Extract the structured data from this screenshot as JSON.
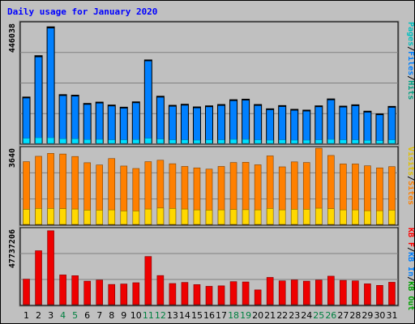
{
  "title": "Daily usage for January 2020",
  "chart_data": {
    "type": "bar",
    "categories": [
      "1",
      "2",
      "3",
      "4",
      "5",
      "6",
      "7",
      "8",
      "9",
      "10",
      "11",
      "12",
      "13",
      "14",
      "15",
      "16",
      "17",
      "18",
      "19",
      "20",
      "21",
      "22",
      "23",
      "24",
      "25",
      "26",
      "27",
      "28",
      "29",
      "30",
      "31"
    ],
    "weekend_days": [
      "4",
      "5",
      "11",
      "12",
      "18",
      "19",
      "25",
      "26"
    ],
    "panels": [
      {
        "id": "hits-files-pages",
        "scale_label": "446038",
        "ymax": 446038,
        "legend": [
          {
            "text": "Pages",
            "color": "#00c0c0"
          },
          {
            "text": "/",
            "color": "#000000"
          },
          {
            "text": "Files",
            "color": "#0080ff"
          },
          {
            "text": "/",
            "color": "#000000"
          },
          {
            "text": "Hits",
            "color": "#00a080"
          }
        ],
        "series": [
          {
            "name": "Hits",
            "color": "#0055ee",
            "values": [
              175000,
              330000,
              438000,
              184000,
              182000,
              151000,
              156000,
              145000,
              137000,
              157000,
              314000,
              178000,
              144000,
              148000,
              138000,
              142000,
              147000,
              165000,
              167000,
              147000,
              131000,
              143000,
              129000,
              126000,
              142000,
              168000,
              141000,
              146000,
              122000,
              112000,
              140000
            ]
          },
          {
            "name": "Files",
            "color": "#0080ff",
            "values": [
              172000,
              326000,
              434000,
              181000,
              179000,
              148000,
              153000,
              142000,
              134000,
              154000,
              311000,
              175000,
              141000,
              145000,
              135000,
              139000,
              144000,
              162000,
              164000,
              144000,
              128000,
              140000,
              126000,
              123000,
              139000,
              165000,
              138000,
              143000,
              119000,
              109000,
              137000
            ]
          },
          {
            "name": "Pages",
            "color": "#00e0ff",
            "values": [
              19000,
              21000,
              21000,
              17000,
              17000,
              14000,
              15000,
              13000,
              13000,
              14000,
              19000,
              16000,
              13000,
              13000,
              12000,
              13000,
              13000,
              15000,
              15000,
              13000,
              12000,
              13000,
              12000,
              12000,
              13000,
              15000,
              13000,
              13000,
              11000,
              10000,
              13000
            ]
          }
        ]
      },
      {
        "id": "visits-sites",
        "scale_label": "3640",
        "ymax": 3640,
        "legend": [
          {
            "text": "Visits",
            "color": "#e0c000"
          },
          {
            "text": "/",
            "color": "#000000"
          },
          {
            "text": "Sites",
            "color": "#ff8000"
          }
        ],
        "series": [
          {
            "name": "Sites",
            "color": "#ff8000",
            "values": [
              3030,
              3290,
              3430,
              3400,
              3280,
              2980,
              2870,
              3180,
              2820,
              2700,
              3030,
              3100,
              2930,
              2800,
              2730,
              2670,
              2800,
              2990,
              3000,
              2880,
              3310,
              2780,
              3020,
              2990,
              3680,
              3330,
              2920,
              2920,
              2830,
              2730,
              2790
            ]
          },
          {
            "name": "Visits",
            "color": "#ffd800",
            "values": [
              730,
              770,
              770,
              760,
              740,
              690,
              690,
              700,
              650,
              650,
              740,
              790,
              770,
              740,
              700,
              690,
              700,
              720,
              710,
              700,
              770,
              700,
              730,
              730,
              780,
              760,
              700,
              700,
              660,
              660,
              690
            ]
          }
        ]
      },
      {
        "id": "kbytes",
        "scale_label": "47737206",
        "ymax": 47737206,
        "legend": [
          {
            "text": "KB F",
            "color": "#ff0000"
          },
          {
            "text": "/",
            "color": "#000000"
          },
          {
            "text": "KB In",
            "color": "#0080ff"
          },
          {
            "text": "/",
            "color": "#000000"
          },
          {
            "text": "KB Out",
            "color": "#00a000"
          }
        ],
        "series": [
          {
            "name": "KB F",
            "color": "#ee0000",
            "values": [
              16300000,
              34500000,
              47300000,
              19000000,
              18500000,
              15000000,
              15700000,
              12900000,
              13200000,
              14000000,
              30800000,
              18600000,
              13500000,
              14200000,
              12800000,
              11700000,
              12000000,
              14700000,
              14500000,
              9400000,
              17400000,
              15200000,
              15800000,
              15000000,
              15700000,
              18200000,
              15500000,
              15200000,
              13300000,
              12300000,
              14300000
            ]
          }
        ]
      }
    ]
  }
}
